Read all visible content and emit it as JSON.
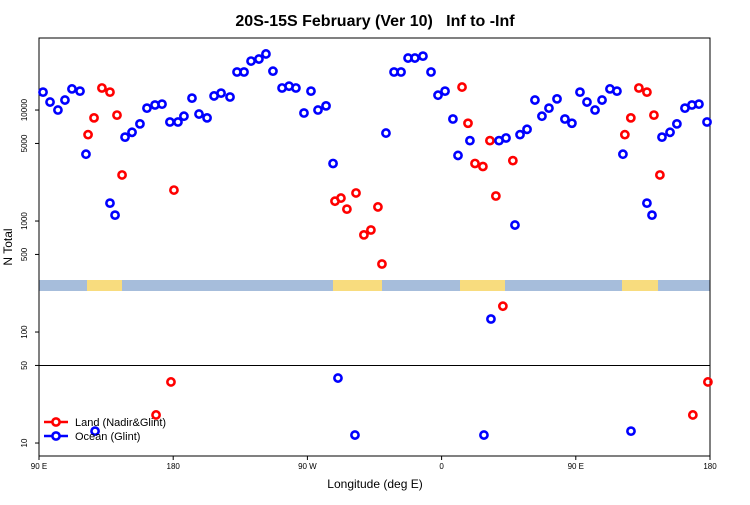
{
  "chart_data": {
    "type": "scatter",
    "title": "20S-15S February (Ver 10)   Inf to -Inf",
    "xlabel": "Longitude (deg E)",
    "ylabel": "N Total",
    "xlim": [
      90,
      540
    ],
    "ylim": [
      7.64,
      44560
    ],
    "log_y": true,
    "xticks": [
      {
        "value": 90,
        "label": "90 E"
      },
      180,
      {
        "value": 270,
        "label": "90 W"
      },
      {
        "value": 360,
        "label": "0"
      },
      {
        "value": 450,
        "label": "90 E"
      },
      {
        "value": 540,
        "label": "180"
      }
    ],
    "yticks": [
      10,
      50,
      100,
      500,
      1000,
      5000,
      10000
    ],
    "legend": "lower left",
    "series": [
      {
        "name": "Land (Nadir&Glint)",
        "color": "#ff0000",
        "x": [
          122.9,
          126.9,
          132.2,
          137.6,
          142.3,
          145.7,
          168.5,
          178.5,
          180.5,
          288.5,
          292.5,
          296.5,
          302.6,
          307.9,
          312.6,
          317.3,
          320.0,
          373.7,
          377.7,
          382.4,
          387.7,
          392.4,
          396.4,
          401.1,
          407.8,
          482.9,
          486.9,
          492.3,
          497.7,
          502.4,
          506.4,
          528.5,
          538.6
        ],
        "values": [
          6000,
          8500,
          15800,
          14500,
          9000,
          2600,
          17.9,
          35.5,
          1900,
          1510,
          1610,
          1280,
          1790,
          750,
          830,
          1340,
          410,
          16100,
          7600,
          3300,
          3100,
          5300,
          1680,
          171,
          3500,
          6000,
          8500,
          15800,
          14500,
          9000,
          2600,
          17.9,
          35.5
        ]
      },
      {
        "name": "Ocean (Glint)",
        "color": "#0000ff",
        "x": [
          92.7,
          97.4,
          102.7,
          107.4,
          112.1,
          117.5,
          121.5,
          137.6,
          141.0,
          147.7,
          152.4,
          157.7,
          162.4,
          167.8,
          172.5,
          177.8,
          183.2,
          187.2,
          192.6,
          197.3,
          202.7,
          207.4,
          212.1,
          218.1,
          222.8,
          227.5,
          232.2,
          237.5,
          242.2,
          246.9,
          253.0,
          257.7,
          262.3,
          267.7,
          272.4,
          277.1,
          282.5,
          287.2,
          290.5,
          301.9,
          322.7,
          328.1,
          332.8,
          337.5,
          342.1,
          347.5,
          352.9,
          357.6,
          362.3,
          367.6,
          371.0,
          379.0,
          388.4,
          393.1,
          398.5,
          403.2,
          409.2,
          412.6,
          417.3,
          422.6,
          427.3,
          432.0,
          437.4,
          442.7,
          447.4,
          452.8,
          457.5,
          462.9,
          467.6,
          472.9,
          477.6,
          481.6,
          487.0,
          497.7,
          501.1,
          507.8,
          513.2,
          517.8,
          523.2,
          527.9,
          532.6,
          538.0,
          127.6
        ],
        "values": [
          14500,
          11800,
          10000,
          12300,
          15500,
          14800,
          4000,
          1450,
          1130,
          5700,
          6300,
          7500,
          10400,
          11100,
          11300,
          7800,
          7800,
          8800,
          12800,
          9200,
          8500,
          13400,
          14200,
          13100,
          22000,
          22000,
          27600,
          28800,
          32000,
          22400,
          15800,
          16400,
          15800,
          9400,
          14800,
          10000,
          10900,
          3300,
          38.5,
          11.8,
          6200,
          22000,
          22000,
          29400,
          29400,
          30600,
          22000,
          13600,
          14800,
          8300,
          3900,
          5300,
          11.8,
          131,
          5300,
          5600,
          920,
          6000,
          6700,
          12300,
          8800,
          10400,
          12600,
          8300,
          7600,
          14500,
          11800,
          10000,
          12300,
          15500,
          14800,
          4000,
          12.8,
          1450,
          1130,
          5700,
          6300,
          7500,
          10400,
          11100,
          11300,
          7800,
          12.8
        ]
      }
    ]
  }
}
